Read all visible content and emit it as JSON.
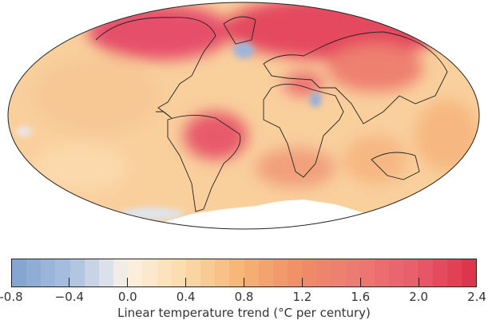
{
  "colorbar": {
    "title": "Linear temperature trend (°C per century)",
    "min": -0.8,
    "max": 2.4,
    "step": 0.1,
    "ticks": [
      "-0.8",
      "−0.4",
      "0.0",
      "0.4",
      "0.8",
      "1.2",
      "1.6",
      "2.0",
      "2.4"
    ],
    "tick_values": [
      -0.8,
      -0.4,
      0.0,
      0.4,
      0.8,
      1.2,
      1.6,
      2.0,
      2.4
    ],
    "color_stops": [
      {
        "v": -0.8,
        "c": "#7fa2cf"
      },
      {
        "v": -0.4,
        "c": "#a9c0df"
      },
      {
        "v": -0.1,
        "c": "#e6e6ec"
      },
      {
        "v": 0.0,
        "c": "#fdf1e2"
      },
      {
        "v": 0.4,
        "c": "#fbdaa9"
      },
      {
        "v": 0.8,
        "c": "#f6b272"
      },
      {
        "v": 1.2,
        "c": "#ef8c67"
      },
      {
        "v": 1.6,
        "c": "#ec7872"
      },
      {
        "v": 2.0,
        "c": "#e85c6c"
      },
      {
        "v": 2.4,
        "c": "#dc2f47"
      }
    ]
  },
  "map": {
    "projection": "Mollweide",
    "base_color": "#f8c48e",
    "warm_color": "#e4485e",
    "cool_color": "#9bb6dc",
    "ice_color": "#ffffff"
  }
}
